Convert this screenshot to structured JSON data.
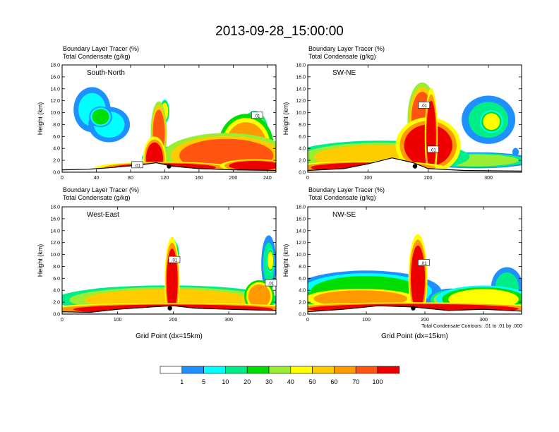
{
  "title": "2013-09-28_15:00:00",
  "colorbar": {
    "labels": [
      "1",
      "5",
      "10",
      "20",
      "30",
      "40",
      "50",
      "60",
      "70",
      "100"
    ],
    "colors": [
      "#ffffff",
      "#1e90ff",
      "#00ffff",
      "#00ee88",
      "#00dd00",
      "#99ee33",
      "#ffff00",
      "#ffcc00",
      "#ff9900",
      "#ff5511",
      "#ee0000"
    ]
  },
  "footnote": "Total Condensate Contours: .01 to .01 by .000",
  "chart_data": [
    {
      "type": "heatmap",
      "subtitle_1": "Boundary Layer Tracer    (%)",
      "subtitle_2": "Total Condensate    (g/kg)",
      "panel_label": "South-North",
      "ylabel": "Height (km)",
      "xlabel": "",
      "ylim": [
        0,
        18
      ],
      "yticks": [
        "0.0",
        "2.0",
        "4.0",
        "6.0",
        "8.0",
        "10.0",
        "12.0",
        "14.0",
        "16.0",
        "18.0"
      ],
      "xlim": [
        0,
        250
      ],
      "xticks": [
        {
          "v": 0,
          "label": "0"
        },
        {
          "v": 40,
          "label": "40"
        },
        {
          "v": 80,
          "label": "80"
        },
        {
          "v": 120,
          "label": "120"
        },
        {
          "v": 160,
          "label": "160"
        },
        {
          "v": 200,
          "label": "200"
        },
        {
          "v": 240,
          "label": "240"
        }
      ],
      "contour_labels": [
        {
          "label": ".01",
          "x": 228,
          "y": 9.5
        },
        {
          "label": ".01",
          "x": 88,
          "y": 1.2
        }
      ],
      "marker": {
        "x": 125,
        "y": 1.0
      },
      "topography": [
        [
          0,
          0.4
        ],
        [
          30,
          0.5
        ],
        [
          60,
          0.8
        ],
        [
          90,
          1.2
        ],
        [
          110,
          1.6
        ],
        [
          130,
          1.0
        ],
        [
          160,
          0.6
        ],
        [
          200,
          0.4
        ],
        [
          250,
          0.3
        ]
      ],
      "ellipses": [
        {
          "cx": 192,
          "cy": 2.8,
          "rx": 55,
          "ry": 2.8,
          "level": 9
        },
        {
          "cx": 215,
          "cy": 4.4,
          "rx": 24,
          "ry": 4.0,
          "level": 8
        },
        {
          "cx": 225,
          "cy": 6.5,
          "rx": 12,
          "ry": 2.8,
          "level": 7
        },
        {
          "cx": 108,
          "cy": 2.2,
          "rx": 10,
          "ry": 2.8,
          "level": 10
        },
        {
          "cx": 113,
          "cy": 6.5,
          "rx": 7,
          "ry": 4.0,
          "level": 9
        },
        {
          "cx": 120,
          "cy": 10.2,
          "rx": 4,
          "ry": 1.5,
          "level": 6
        },
        {
          "cx": 150,
          "cy": 2.4,
          "rx": 42,
          "ry": 1.6,
          "level": 7
        },
        {
          "cx": 35,
          "cy": 10.5,
          "rx": 16,
          "ry": 2.8,
          "level": 2
        },
        {
          "cx": 55,
          "cy": 8.0,
          "rx": 18,
          "ry": 2.2,
          "level": 2
        },
        {
          "cx": 45,
          "cy": 9.3,
          "rx": 10,
          "ry": 1.3,
          "level": 4
        },
        {
          "cx": 120,
          "cy": 0.8,
          "rx": 60,
          "ry": 0.7,
          "level": 10
        },
        {
          "cx": 225,
          "cy": 1.1,
          "rx": 30,
          "ry": 0.8,
          "level": 10
        }
      ]
    },
    {
      "type": "heatmap",
      "subtitle_1": "Boundary Layer Tracer    (%)",
      "subtitle_2": "Total Condensate    (g/kg)",
      "panel_label": "SW-NE",
      "ylabel": "Height (km)",
      "xlabel": "",
      "ylim": [
        0,
        18
      ],
      "yticks": [
        "0.0",
        "2.0",
        "4.0",
        "6.0",
        "8.0",
        "10.0",
        "12.0",
        "14.0",
        "16.0",
        "18.0"
      ],
      "xlim": [
        0,
        355
      ],
      "xticks": [
        {
          "v": 0,
          "label": "0"
        },
        {
          "v": 100,
          "label": "100"
        },
        {
          "v": 200,
          "label": "200"
        },
        {
          "v": 300,
          "label": "300"
        }
      ],
      "contour_labels": [
        {
          "label": ".01",
          "x": 193,
          "y": 11.2
        },
        {
          "label": ".01",
          "x": 208,
          "y": 3.8
        }
      ],
      "marker": {
        "x": 178,
        "y": 1.0
      },
      "topography": [
        [
          0,
          0.3
        ],
        [
          60,
          0.6
        ],
        [
          100,
          1.4
        ],
        [
          140,
          2.4
        ],
        [
          175,
          1.6
        ],
        [
          200,
          0.6
        ],
        [
          260,
          0.3
        ],
        [
          355,
          0.2
        ]
      ],
      "ellipses": [
        {
          "cx": 200,
          "cy": 4.5,
          "rx": 40,
          "ry": 3.5,
          "level": 10
        },
        {
          "cx": 120,
          "cy": 2.6,
          "rx": 110,
          "ry": 2.0,
          "level": 7
        },
        {
          "cx": 190,
          "cy": 9.0,
          "rx": 18,
          "ry": 4.5,
          "level": 9
        },
        {
          "cx": 205,
          "cy": 6.0,
          "rx": 8,
          "ry": 6.0,
          "level": 10
        },
        {
          "cx": 280,
          "cy": 2.0,
          "rx": 70,
          "ry": 1.0,
          "level": 5
        },
        {
          "cx": 300,
          "cy": 8.8,
          "rx": 33,
          "ry": 3.0,
          "level": 3
        },
        {
          "cx": 305,
          "cy": 8.5,
          "rx": 14,
          "ry": 1.4,
          "level": 6
        },
        {
          "cx": 100,
          "cy": 0.8,
          "rx": 95,
          "ry": 0.8,
          "level": 10
        },
        {
          "cx": 345,
          "cy": 3.4,
          "rx": 4,
          "ry": 0.5,
          "level": 1
        }
      ]
    },
    {
      "type": "heatmap",
      "subtitle_1": "Boundary Layer Tracer    (%)",
      "subtitle_2": "Total Condensate    (g/kg)",
      "panel_label": "West-East",
      "ylabel": "Height (km)",
      "xlabel": "Grid Point (dx=15km)",
      "ylim": [
        0,
        18
      ],
      "yticks": [
        "0.0",
        "2.0",
        "4.0",
        "6.0",
        "8.0",
        "10.0",
        "12.0",
        "14.0",
        "16.0",
        "18.0"
      ],
      "xlim": [
        0,
        385
      ],
      "xticks": [
        {
          "v": 0,
          "label": "0"
        },
        {
          "v": 100,
          "label": "100"
        },
        {
          "v": 200,
          "label": "200"
        },
        {
          "v": 300,
          "label": "300"
        }
      ],
      "contour_labels": [
        {
          "label": ".01",
          "x": 202,
          "y": 9.1
        },
        {
          "label": ".01",
          "x": 376,
          "y": 5.2
        }
      ],
      "marker": {
        "x": 194,
        "y": 1.0
      },
      "topography": [
        [
          0,
          0.4
        ],
        [
          50,
          0.3
        ],
        [
          100,
          0.8
        ],
        [
          160,
          1.2
        ],
        [
          200,
          1.4
        ],
        [
          240,
          1.0
        ],
        [
          300,
          0.8
        ],
        [
          385,
          0.6
        ]
      ],
      "ellipses": [
        {
          "cx": 190,
          "cy": 2.4,
          "rx": 150,
          "ry": 1.8,
          "level": 7
        },
        {
          "cx": 198,
          "cy": 5.5,
          "rx": 10,
          "ry": 5.5,
          "level": 10
        },
        {
          "cx": 200,
          "cy": 10.0,
          "rx": 8,
          "ry": 1.8,
          "level": 6
        },
        {
          "cx": 355,
          "cy": 3.0,
          "rx": 20,
          "ry": 2.0,
          "level": 8
        },
        {
          "cx": 372,
          "cy": 8.5,
          "rx": 10,
          "ry": 3.5,
          "level": 3
        },
        {
          "cx": 375,
          "cy": 9.0,
          "rx": 5,
          "ry": 1.5,
          "level": 6
        },
        {
          "cx": 200,
          "cy": 0.8,
          "rx": 180,
          "ry": 0.8,
          "level": 10
        },
        {
          "cx": 110,
          "cy": 3.2,
          "rx": 60,
          "ry": 1.0,
          "level": 3
        }
      ]
    },
    {
      "type": "heatmap",
      "subtitle_1": "Boundary Layer Tracer    (%)",
      "subtitle_2": "Total Condensate    (g/kg)",
      "panel_label": "NW-SE",
      "ylabel": "Height (km)",
      "xlabel": "Grid Point (dx=15km)",
      "ylim": [
        0,
        18
      ],
      "yticks": [
        "0.0",
        "2.0",
        "4.0",
        "6.0",
        "8.0",
        "10.0",
        "12.0",
        "14.0",
        "16.0",
        "18.0"
      ],
      "xlim": [
        0,
        365
      ],
      "xticks": [
        {
          "v": 0,
          "label": "0"
        },
        {
          "v": 100,
          "label": "100"
        },
        {
          "v": 200,
          "label": "200"
        },
        {
          "v": 300,
          "label": "300"
        }
      ],
      "contour_labels": [
        {
          "label": ".01",
          "x": 198,
          "y": 8.6
        }
      ],
      "marker": {
        "x": 180,
        "y": 1.0
      },
      "topography": [
        [
          0,
          0.4
        ],
        [
          60,
          0.8
        ],
        [
          120,
          1.4
        ],
        [
          180,
          1.2
        ],
        [
          240,
          0.6
        ],
        [
          300,
          0.8
        ],
        [
          365,
          0.5
        ]
      ],
      "ellipses": [
        {
          "cx": 100,
          "cy": 3.8,
          "rx": 95,
          "ry": 2.6,
          "level": 4
        },
        {
          "cx": 90,
          "cy": 2.6,
          "rx": 80,
          "ry": 1.4,
          "level": 8
        },
        {
          "cx": 188,
          "cy": 6.0,
          "rx": 12,
          "ry": 5.5,
          "level": 10
        },
        {
          "cx": 190,
          "cy": 10.0,
          "rx": 6,
          "ry": 1.5,
          "level": 6
        },
        {
          "cx": 300,
          "cy": 2.5,
          "rx": 60,
          "ry": 1.7,
          "level": 6
        },
        {
          "cx": 340,
          "cy": 4.5,
          "rx": 20,
          "ry": 2.5,
          "level": 3
        },
        {
          "cx": 180,
          "cy": 0.9,
          "rx": 180,
          "ry": 0.8,
          "level": 10
        },
        {
          "cx": 245,
          "cy": 2.4,
          "rx": 30,
          "ry": 1.4,
          "level": 5
        }
      ]
    }
  ]
}
